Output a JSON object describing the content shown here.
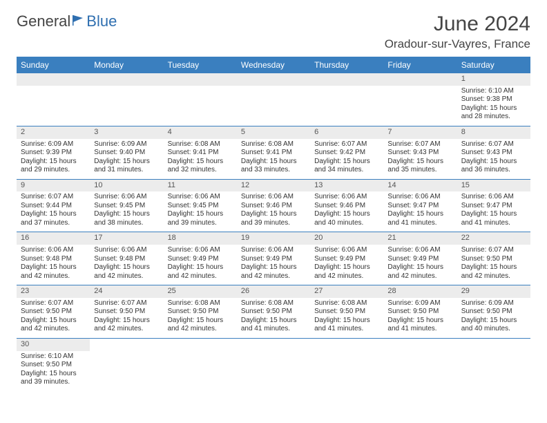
{
  "brand": {
    "part1": "General",
    "part2": "Blue"
  },
  "title": {
    "month": "June 2024",
    "location": "Oradour-sur-Vayres, France"
  },
  "colors": {
    "header_bg": "#3a7fbf",
    "header_text": "#ffffff",
    "daynum_bg": "#ececec",
    "border": "#3a7fbf",
    "text": "#333333",
    "brand_blue": "#2f6fb0"
  },
  "weekdays": [
    "Sunday",
    "Monday",
    "Tuesday",
    "Wednesday",
    "Thursday",
    "Friday",
    "Saturday"
  ],
  "weeks": [
    [
      null,
      null,
      null,
      null,
      null,
      null,
      {
        "n": "1",
        "sr": "6:10 AM",
        "ss": "9:38 PM",
        "dl": "15 hours and 28 minutes."
      }
    ],
    [
      {
        "n": "2",
        "sr": "6:09 AM",
        "ss": "9:39 PM",
        "dl": "15 hours and 29 minutes."
      },
      {
        "n": "3",
        "sr": "6:09 AM",
        "ss": "9:40 PM",
        "dl": "15 hours and 31 minutes."
      },
      {
        "n": "4",
        "sr": "6:08 AM",
        "ss": "9:41 PM",
        "dl": "15 hours and 32 minutes."
      },
      {
        "n": "5",
        "sr": "6:08 AM",
        "ss": "9:41 PM",
        "dl": "15 hours and 33 minutes."
      },
      {
        "n": "6",
        "sr": "6:07 AM",
        "ss": "9:42 PM",
        "dl": "15 hours and 34 minutes."
      },
      {
        "n": "7",
        "sr": "6:07 AM",
        "ss": "9:43 PM",
        "dl": "15 hours and 35 minutes."
      },
      {
        "n": "8",
        "sr": "6:07 AM",
        "ss": "9:43 PM",
        "dl": "15 hours and 36 minutes."
      }
    ],
    [
      {
        "n": "9",
        "sr": "6:07 AM",
        "ss": "9:44 PM",
        "dl": "15 hours and 37 minutes."
      },
      {
        "n": "10",
        "sr": "6:06 AM",
        "ss": "9:45 PM",
        "dl": "15 hours and 38 minutes."
      },
      {
        "n": "11",
        "sr": "6:06 AM",
        "ss": "9:45 PM",
        "dl": "15 hours and 39 minutes."
      },
      {
        "n": "12",
        "sr": "6:06 AM",
        "ss": "9:46 PM",
        "dl": "15 hours and 39 minutes."
      },
      {
        "n": "13",
        "sr": "6:06 AM",
        "ss": "9:46 PM",
        "dl": "15 hours and 40 minutes."
      },
      {
        "n": "14",
        "sr": "6:06 AM",
        "ss": "9:47 PM",
        "dl": "15 hours and 41 minutes."
      },
      {
        "n": "15",
        "sr": "6:06 AM",
        "ss": "9:47 PM",
        "dl": "15 hours and 41 minutes."
      }
    ],
    [
      {
        "n": "16",
        "sr": "6:06 AM",
        "ss": "9:48 PM",
        "dl": "15 hours and 42 minutes."
      },
      {
        "n": "17",
        "sr": "6:06 AM",
        "ss": "9:48 PM",
        "dl": "15 hours and 42 minutes."
      },
      {
        "n": "18",
        "sr": "6:06 AM",
        "ss": "9:49 PM",
        "dl": "15 hours and 42 minutes."
      },
      {
        "n": "19",
        "sr": "6:06 AM",
        "ss": "9:49 PM",
        "dl": "15 hours and 42 minutes."
      },
      {
        "n": "20",
        "sr": "6:06 AM",
        "ss": "9:49 PM",
        "dl": "15 hours and 42 minutes."
      },
      {
        "n": "21",
        "sr": "6:06 AM",
        "ss": "9:49 PM",
        "dl": "15 hours and 42 minutes."
      },
      {
        "n": "22",
        "sr": "6:07 AM",
        "ss": "9:50 PM",
        "dl": "15 hours and 42 minutes."
      }
    ],
    [
      {
        "n": "23",
        "sr": "6:07 AM",
        "ss": "9:50 PM",
        "dl": "15 hours and 42 minutes."
      },
      {
        "n": "24",
        "sr": "6:07 AM",
        "ss": "9:50 PM",
        "dl": "15 hours and 42 minutes."
      },
      {
        "n": "25",
        "sr": "6:08 AM",
        "ss": "9:50 PM",
        "dl": "15 hours and 42 minutes."
      },
      {
        "n": "26",
        "sr": "6:08 AM",
        "ss": "9:50 PM",
        "dl": "15 hours and 41 minutes."
      },
      {
        "n": "27",
        "sr": "6:08 AM",
        "ss": "9:50 PM",
        "dl": "15 hours and 41 minutes."
      },
      {
        "n": "28",
        "sr": "6:09 AM",
        "ss": "9:50 PM",
        "dl": "15 hours and 41 minutes."
      },
      {
        "n": "29",
        "sr": "6:09 AM",
        "ss": "9:50 PM",
        "dl": "15 hours and 40 minutes."
      }
    ],
    [
      {
        "n": "30",
        "sr": "6:10 AM",
        "ss": "9:50 PM",
        "dl": "15 hours and 39 minutes."
      },
      null,
      null,
      null,
      null,
      null,
      null
    ]
  ],
  "labels": {
    "sunrise": "Sunrise: ",
    "sunset": "Sunset: ",
    "daylight": "Daylight: "
  }
}
